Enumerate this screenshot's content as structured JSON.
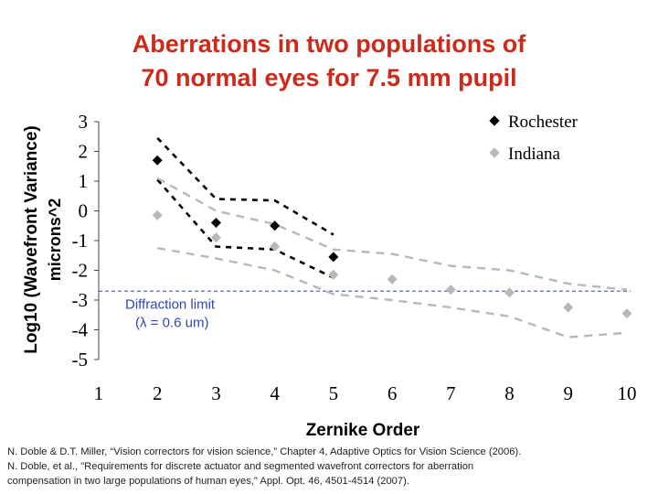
{
  "title_lines": [
    "Aberrations in two populations of",
    "70 normal eyes for 7.5 mm pupil"
  ],
  "chart_data": {
    "type": "scatter",
    "title": "Aberrations in two populations of 70 normal eyes for 7.5 mm pupil",
    "xlabel": "Zernike Order",
    "ylabel_line1": "Log10 (Wavefront Variance)",
    "ylabel_line2": "microns^2",
    "xlim": [
      1,
      10
    ],
    "ylim": [
      -5,
      3
    ],
    "xticks": [
      "1",
      "2",
      "3",
      "4",
      "5",
      "6",
      "7",
      "8",
      "9",
      "10"
    ],
    "yticks": [
      "3",
      "2",
      "1",
      "0",
      "-1",
      "-2",
      "-3",
      "-4",
      "-5"
    ],
    "series": [
      {
        "name": "Rochester",
        "color": "#000000",
        "x": [
          2,
          3,
          4,
          5
        ],
        "y": [
          1.7,
          -0.4,
          -0.5,
          -1.55
        ],
        "band_upper": [
          2.45,
          0.4,
          0.35,
          -0.8
        ],
        "band_lower": [
          1.05,
          -1.2,
          -1.3,
          -2.25
        ]
      },
      {
        "name": "Indiana",
        "color": "#b8b8b8",
        "x": [
          2,
          3,
          4,
          5,
          6,
          7,
          8,
          9,
          10
        ],
        "y": [
          -0.15,
          -0.9,
          -1.2,
          -2.15,
          -2.3,
          -2.65,
          -2.75,
          -3.25,
          -3.45
        ],
        "band_upper": [
          1.1,
          0.0,
          -0.45,
          -1.3,
          -1.45,
          -1.85,
          -2.0,
          -2.45,
          -2.65
        ],
        "band_lower": [
          -1.25,
          -1.6,
          -2.0,
          -2.8,
          -3.0,
          -3.25,
          -3.55,
          -4.25,
          -4.1
        ]
      }
    ],
    "reference_line": {
      "y": -2.7,
      "label_line1": "Diffraction limit",
      "label_line2": "(λ = 0.6 um)",
      "color": "#3344bb"
    },
    "legend": [
      "Rochester",
      "Indiana"
    ]
  },
  "references": [
    "N. Doble & D.T. Miller, “Vision correctors for vision science,” Chapter 4, Adaptive Optics for Vision Science (2006).",
    "N. Doble, et al., \"Requirements for discrete actuator and segmented wavefront correctors for aberration",
    "compensation in two large populations of human eyes,\" Appl. Opt. 46, 4501-4514 (2007)."
  ]
}
